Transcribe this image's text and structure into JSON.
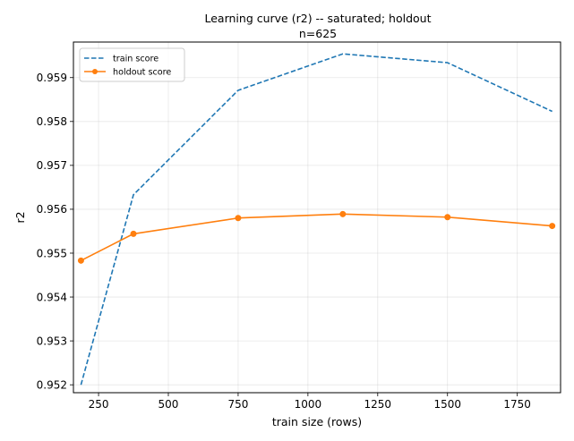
{
  "chart_data": {
    "type": "line",
    "title_lines": [
      "Learning curve (r2) -- saturated; holdout",
      "n=625"
    ],
    "xlabel": "train size (rows)",
    "ylabel": "r2",
    "xlim": [
      160,
      1905
    ],
    "ylim": [
      0.95182,
      0.95981
    ],
    "xticks": [
      {
        "value": 250,
        "label": "250"
      },
      {
        "value": 500,
        "label": "500"
      },
      {
        "value": 750,
        "label": "750"
      },
      {
        "value": 1000,
        "label": "1000"
      },
      {
        "value": 1250,
        "label": "1250"
      },
      {
        "value": 1500,
        "label": "1500"
      },
      {
        "value": 1750,
        "label": "1750"
      }
    ],
    "yticks": [
      {
        "value": 0.952,
        "label": "0.952"
      },
      {
        "value": 0.953,
        "label": "0.953"
      },
      {
        "value": 0.954,
        "label": "0.954"
      },
      {
        "value": 0.955,
        "label": "0.955"
      },
      {
        "value": 0.956,
        "label": "0.956"
      },
      {
        "value": 0.957,
        "label": "0.957"
      },
      {
        "value": 0.958,
        "label": "0.958"
      },
      {
        "value": 0.959,
        "label": "0.959"
      }
    ],
    "grid": true,
    "legend_position": "top-left",
    "x": [
      187,
      375,
      750,
      1125,
      1500,
      1875
    ],
    "series": [
      {
        "name": "train score",
        "values": [
          0.952,
          0.95633,
          0.95871,
          0.95954,
          0.95934,
          0.95823
        ],
        "color": "#1f77b4",
        "style": "dashed",
        "marker": "none"
      },
      {
        "name": "holdout score",
        "values": [
          0.95483,
          0.95544,
          0.9558,
          0.95589,
          0.95582,
          0.95562
        ],
        "color": "#ff7f0e",
        "style": "solid",
        "marker": "circle"
      }
    ]
  }
}
